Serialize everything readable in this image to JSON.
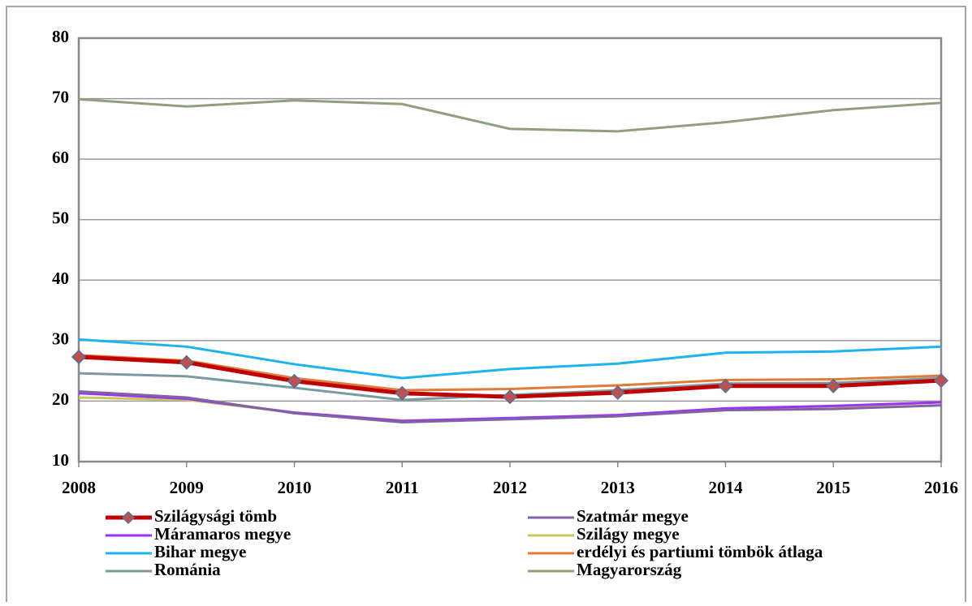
{
  "chart_data": {
    "type": "line",
    "x": [
      2008,
      2009,
      2010,
      2011,
      2012,
      2013,
      2014,
      2015,
      2016
    ],
    "xlim": [
      2008,
      2016
    ],
    "xticks": [
      2008,
      2009,
      2010,
      2011,
      2012,
      2013,
      2014,
      2015,
      2016
    ],
    "ylim": [
      10,
      80
    ],
    "yticks": [
      10,
      20,
      30,
      40,
      50,
      60,
      70,
      80
    ],
    "grid": true,
    "series": [
      {
        "name": "Szilágysági tömb",
        "color": "#c00000",
        "marker": "diamond",
        "values": [
          27.3,
          26.4,
          23.3,
          21.3,
          20.7,
          21.4,
          22.5,
          22.5,
          23.4
        ]
      },
      {
        "name": "Szatmár megye",
        "color": "#8064a2",
        "values": [
          21.6,
          20.6,
          18.0,
          16.5,
          17.0,
          17.5,
          18.5,
          18.7,
          19.3
        ]
      },
      {
        "name": "Máramaros megye",
        "color": "#9b30ff",
        "values": [
          21.3,
          20.4,
          18.1,
          16.7,
          17.2,
          17.7,
          18.8,
          19.2,
          19.8
        ]
      },
      {
        "name": "Szilágy megye",
        "color": "#c8c85a",
        "values": [
          20.6,
          20.2,
          18.1,
          16.8,
          17.1,
          17.6,
          18.6,
          19.0,
          19.8
        ]
      },
      {
        "name": "Bihar megye",
        "color": "#1fb2f0",
        "values": [
          30.2,
          29.0,
          26.1,
          23.8,
          25.3,
          26.2,
          28.0,
          28.2,
          29.0
        ]
      },
      {
        "name": "erdélyi és partiumi tömbök átlaga",
        "color": "#e07b39",
        "values": [
          27.6,
          26.7,
          23.8,
          21.8,
          22.0,
          22.6,
          23.5,
          23.6,
          24.2
        ]
      },
      {
        "name": "Románia",
        "color": "#7a9aa0",
        "values": [
          24.6,
          24.1,
          22.2,
          20.2,
          21.0,
          21.8,
          22.9,
          23.0,
          23.8
        ]
      },
      {
        "name": "Magyarország",
        "color": "#8fa07e",
        "values": [
          69.9,
          68.7,
          69.7,
          69.1,
          65.0,
          64.6,
          66.1,
          68.1,
          69.3
        ]
      }
    ]
  }
}
